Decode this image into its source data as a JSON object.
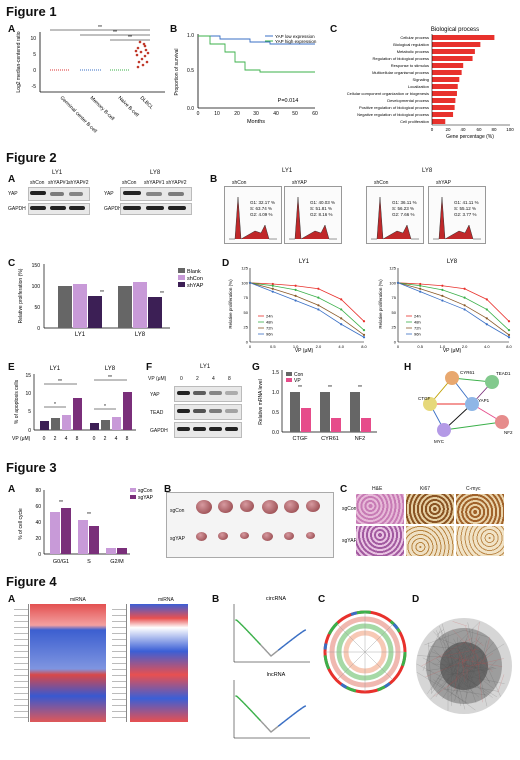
{
  "figures": [
    {
      "title": "Figure 1"
    },
    {
      "title": "Figure 2"
    },
    {
      "title": "Figure 3"
    },
    {
      "title": "Figure 4"
    }
  ],
  "fig1": {
    "A": {
      "label": "A",
      "ylabel": "Log2 median-centered ratio",
      "yticks": [
        "-5",
        "0",
        "5",
        "10"
      ],
      "groups": [
        "Germinal center B-cell",
        "Memory B-cell",
        "Naive B-cell",
        "DLBCL"
      ],
      "sig": [
        "**",
        "**",
        "**"
      ]
    },
    "B": {
      "label": "B",
      "ylabel": "Proportion of survival",
      "xlabel": "Months",
      "xticks": [
        "0",
        "10",
        "20",
        "30",
        "40",
        "50",
        "60"
      ],
      "yticks": [
        "0.0",
        "0.5",
        "1.0"
      ],
      "legend": [
        "YAP low expression",
        "YAP high expression"
      ],
      "pval": "P=0.014"
    },
    "C": {
      "label": "C",
      "title": "Biological process",
      "xlabel": "Gene percentage (%)",
      "xticks": [
        "0",
        "20",
        "40",
        "60",
        "80",
        "100"
      ],
      "categories": [
        "Cellular process",
        "Biological regulation",
        "Metabolic process",
        "Regulation of biological process",
        "Response to stimulus",
        "Multicellular organismal process",
        "Signaling",
        "Localization",
        "Cellular component organization or biogenesis",
        "Developmental process",
        "Positive regulation of biological process",
        "Negative regulation of biological process",
        "Cell proliferation"
      ],
      "values": [
        80,
        62,
        55,
        52,
        40,
        38,
        35,
        33,
        32,
        30,
        29,
        27,
        17
      ]
    }
  },
  "fig2": {
    "A": {
      "label": "A",
      "ly1": "LY1",
      "ly8": "LY8",
      "lanes1": [
        "shCon",
        "shYAP#1",
        "shYAP#2"
      ],
      "lanes8": [
        "shCon",
        "shYAP#1",
        "shYAP#2"
      ],
      "rows": [
        "YAP",
        "GAPDH"
      ]
    },
    "B": {
      "label": "B",
      "ly1": "LY1",
      "ly8": "LY8",
      "cols": [
        "shCon",
        "shYAP",
        "shCon",
        "shYAP"
      ],
      "stats": [
        [
          "G1: 32.17 %",
          "S: 63.74 %",
          "G2: 4.09 %"
        ],
        [
          "G1: 40.03 %",
          "S: 51.81 %",
          "G2: 8.16 %"
        ],
        [
          "G1: 36.11 %",
          "S: 56.23 %",
          "G2: 7.66 %"
        ],
        [
          "G1: 41.11 %",
          "S: 55.12 %",
          "G2: 3.77 %"
        ]
      ]
    },
    "C": {
      "label": "C",
      "ylabel": "Relative proliferation (%)",
      "yticks": [
        "0",
        "50",
        "100",
        "150"
      ],
      "legend": [
        "Blank",
        "shCon",
        "shYAP"
      ],
      "categories": [
        "LY1",
        "LY8"
      ],
      "sig": [
        "**",
        "**"
      ]
    },
    "D": {
      "label": "D",
      "titles": [
        "LY1",
        "LY8"
      ],
      "ylabel": "Relative proliferation (%)",
      "xlabel": "VP (μM)",
      "xticks": [
        "0",
        "0.5",
        "1.0",
        "2.0",
        "4.0",
        "8.0"
      ],
      "yticks": [
        "0",
        "25",
        "50",
        "75",
        "100",
        "125"
      ],
      "legend": [
        "24h",
        "48h",
        "72h",
        "96h"
      ]
    },
    "E": {
      "label": "E",
      "titles": [
        "LY1",
        "LY8"
      ],
      "ylabel": "% of apoptosis cells",
      "yticks": [
        "0",
        "5",
        "10",
        "15"
      ],
      "xlabel": "VP (μM)",
      "xticks": [
        "0",
        "2",
        "4",
        "8",
        "0",
        "2",
        "4",
        "8"
      ],
      "sig": [
        "**",
        "*",
        "**",
        "*"
      ]
    },
    "F": {
      "label": "F",
      "title": "LY1",
      "vp": "VP (μM)",
      "lanes": [
        "0",
        "2",
        "4",
        "8"
      ],
      "rows": [
        "YAP",
        "TEAD",
        "GAPDH"
      ]
    },
    "G": {
      "label": "G",
      "ylabel": "Relative mRNA level",
      "legend": [
        "Con",
        "VP"
      ],
      "categories": [
        "CTGF",
        "CYR61",
        "NF2"
      ],
      "yticks": [
        "0.0",
        "0.5",
        "1.0",
        "1.5"
      ],
      "sig": [
        "**",
        "**",
        "**"
      ]
    },
    "H": {
      "label": "H",
      "nodes": [
        "CYR61",
        "TEAD1",
        "CTGF",
        "YAP1",
        "MYC",
        "NF2"
      ]
    }
  },
  "fig3": {
    "A": {
      "label": "A",
      "ylabel": "% of cell cycle",
      "yticks": [
        "0",
        "20",
        "40",
        "60",
        "80"
      ],
      "categories": [
        "G0/G1",
        "S",
        "G2/M"
      ],
      "legend": [
        "sgCon",
        "sgYAP"
      ],
      "sig": [
        "**",
        "**"
      ]
    },
    "B": {
      "label": "B",
      "rows": [
        "sgCon",
        "sgYAP"
      ]
    },
    "C": {
      "label": "C",
      "cols": [
        "H&E",
        "Ki67",
        "C-myc"
      ],
      "rows": [
        "sgCon",
        "sgYAP"
      ]
    }
  },
  "fig4": {
    "A": {
      "label": "A",
      "titles": [
        "miRNA",
        "miRNA"
      ]
    },
    "B": {
      "label": "B",
      "titles": [
        "circRNA",
        "lncRNA"
      ]
    },
    "C": {
      "label": "C"
    },
    "D": {
      "label": "D"
    }
  },
  "colors": {
    "red": "#e8312c",
    "blue": "#3a6fc4",
    "green": "#3bb04a",
    "purple": "#7a2f7a",
    "pink": "#e64c8a",
    "gray": "#666666",
    "lilac": "#c89ad8"
  }
}
